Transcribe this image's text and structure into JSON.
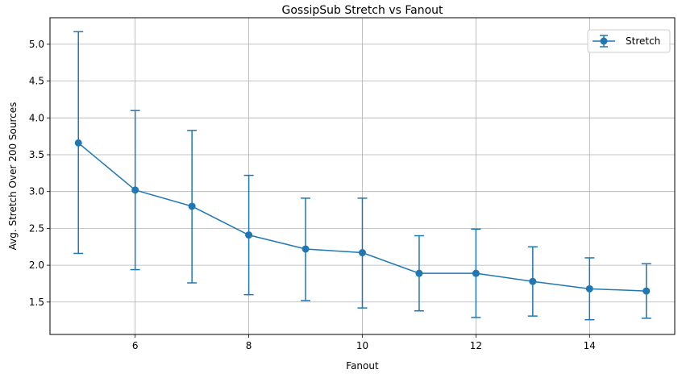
{
  "chart_data": {
    "type": "line",
    "title": "GossipSub Stretch vs Fanout",
    "xlabel": "Fanout",
    "ylabel": "Avg. Stretch Over 200 Sources",
    "xlim": [
      4.5,
      15.5
    ],
    "ylim": [
      1.06,
      5.36
    ],
    "xticks": [
      6,
      8,
      10,
      12,
      14
    ],
    "yticks": [
      1.5,
      2.0,
      2.5,
      3.0,
      3.5,
      4.0,
      4.5,
      5.0
    ],
    "xtick_labels": [
      "6",
      "8",
      "10",
      "12",
      "14"
    ],
    "ytick_labels": [
      "1.5",
      "2.0",
      "2.5",
      "3.0",
      "3.5",
      "4.0",
      "4.5",
      "5.0"
    ],
    "grid": true,
    "legend_position": "top-right",
    "error_bars": true,
    "x": [
      5,
      6,
      7,
      8,
      9,
      10,
      11,
      12,
      13,
      14,
      15
    ],
    "series": [
      {
        "name": "Stretch",
        "color": "#1f77b4",
        "marker": "circle",
        "values": [
          3.66,
          3.02,
          2.8,
          2.41,
          2.22,
          2.17,
          1.89,
          1.89,
          1.78,
          1.68,
          1.65
        ],
        "err_low": [
          2.16,
          1.94,
          1.76,
          1.6,
          1.52,
          1.42,
          1.38,
          1.29,
          1.31,
          1.26,
          1.28
        ],
        "err_high": [
          5.17,
          4.1,
          3.83,
          3.22,
          2.91,
          2.91,
          2.4,
          2.49,
          2.25,
          2.1,
          2.02
        ]
      }
    ]
  }
}
